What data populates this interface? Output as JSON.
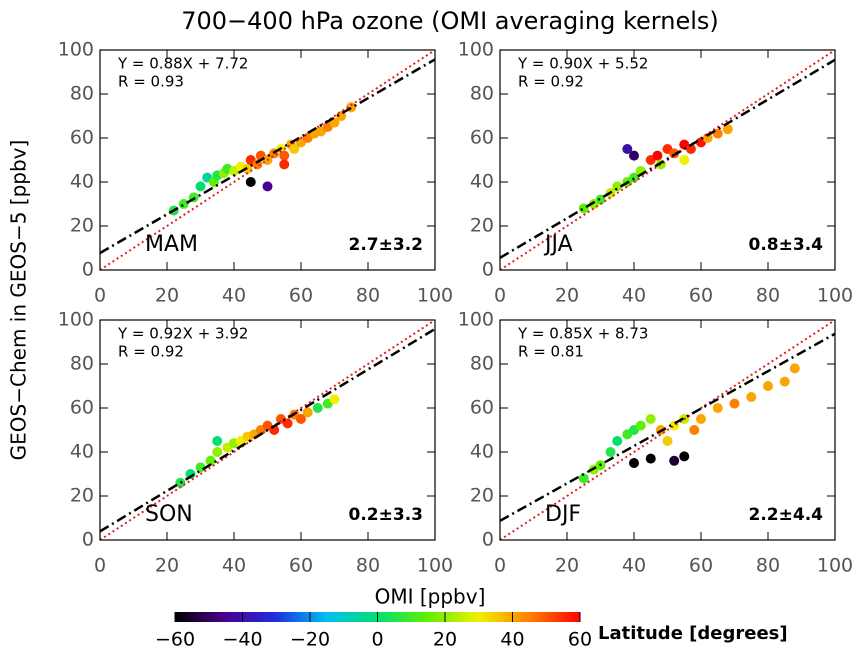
{
  "title": "700−400 hPa ozone (OMI averaging kernels)",
  "xlabel": "OMI [ppbv]",
  "ylabel": "GEOS−Chem in GEOS−5 [ppbv]",
  "colorbar": {
    "label": "Latitude [degrees]",
    "lim": [
      -60,
      60
    ],
    "ticks": [
      {
        "value": -60,
        "label": "−60"
      },
      {
        "value": -40,
        "label": "−40"
      },
      {
        "value": -20,
        "label": "−20"
      },
      0,
      20,
      40,
      60
    ],
    "colors": [
      "#000000",
      "#4b0090",
      "#2030e0",
      "#00c0f0",
      "#00e070",
      "#60f000",
      "#f0f000",
      "#ff8000",
      "#ff0000"
    ]
  },
  "chart_data": [
    {
      "type": "scatter",
      "season": "MAM",
      "equation": "Y = 0.88X + 7.72",
      "r": "R = 0.93",
      "bias": "2.7±3.2",
      "fit": {
        "slope": 0.88,
        "intercept": 7.72,
        "color": "#000000"
      },
      "one_to_one_color": "#e02020",
      "xlim": [
        0,
        100
      ],
      "ylim": [
        0,
        100
      ],
      "xticks": [
        0,
        20,
        40,
        60,
        80,
        100
      ],
      "yticks": [
        0,
        20,
        40,
        60,
        80,
        100
      ],
      "x": [
        22,
        25,
        28,
        30,
        32,
        34,
        35,
        37,
        38,
        40,
        42,
        44,
        45,
        47,
        48,
        50,
        52,
        54,
        55,
        57,
        58,
        60,
        62,
        64,
        66,
        68,
        70,
        72,
        75,
        45,
        50,
        55
      ],
      "y": [
        27,
        30,
        33,
        38,
        42,
        40,
        43,
        44,
        46,
        45,
        47,
        46,
        50,
        48,
        52,
        50,
        53,
        55,
        52,
        57,
        55,
        58,
        60,
        62,
        63,
        65,
        67,
        70,
        74,
        40,
        38,
        48
      ],
      "lat": [
        5,
        10,
        10,
        0,
        -5,
        15,
        5,
        20,
        10,
        25,
        30,
        35,
        55,
        45,
        50,
        40,
        45,
        30,
        50,
        40,
        35,
        40,
        45,
        40,
        40,
        45,
        40,
        40,
        40,
        -60,
        -45,
        55
      ]
    },
    {
      "type": "scatter",
      "season": "JJA",
      "equation": "Y = 0.90X + 5.52",
      "r": "R = 0.92",
      "bias": "0.8±3.4",
      "fit": {
        "slope": 0.9,
        "intercept": 5.52,
        "color": "#000000"
      },
      "one_to_one_color": "#e02020",
      "xlim": [
        0,
        100
      ],
      "ylim": [
        0,
        100
      ],
      "xticks": [
        0,
        20,
        40,
        60,
        80,
        100
      ],
      "yticks": [
        0,
        20,
        40,
        60,
        80,
        100
      ],
      "x": [
        25,
        28,
        30,
        33,
        35,
        38,
        40,
        42,
        45,
        47,
        50,
        52,
        55,
        57,
        60,
        62,
        65,
        68,
        40,
        38,
        48,
        55
      ],
      "y": [
        28,
        30,
        32,
        35,
        38,
        40,
        42,
        45,
        50,
        52,
        55,
        53,
        57,
        55,
        58,
        60,
        62,
        64,
        52,
        55,
        48,
        50
      ],
      "lat": [
        15,
        20,
        10,
        25,
        20,
        15,
        10,
        20,
        55,
        60,
        55,
        50,
        60,
        55,
        58,
        40,
        45,
        40,
        -50,
        -40,
        20,
        30
      ]
    },
    {
      "type": "scatter",
      "season": "SON",
      "equation": "Y = 0.92X + 3.92",
      "r": "R = 0.92",
      "bias": "0.2±3.3",
      "fit": {
        "slope": 0.92,
        "intercept": 3.92,
        "color": "#000000"
      },
      "one_to_one_color": "#e02020",
      "xlim": [
        0,
        100
      ],
      "ylim": [
        0,
        100
      ],
      "xticks": [
        0,
        20,
        40,
        60,
        80,
        100
      ],
      "yticks": [
        0,
        20,
        40,
        60,
        80,
        100
      ],
      "x": [
        24,
        27,
        30,
        33,
        35,
        38,
        40,
        42,
        44,
        46,
        48,
        50,
        52,
        54,
        56,
        58,
        60,
        62,
        65,
        68,
        70,
        35
      ],
      "y": [
        26,
        30,
        33,
        36,
        40,
        42,
        44,
        45,
        47,
        48,
        50,
        52,
        50,
        55,
        53,
        57,
        55,
        58,
        60,
        62,
        64,
        45
      ],
      "lat": [
        5,
        0,
        10,
        15,
        20,
        25,
        20,
        30,
        35,
        40,
        45,
        50,
        55,
        50,
        55,
        45,
        50,
        40,
        5,
        10,
        30,
        0
      ]
    },
    {
      "type": "scatter",
      "season": "DJF",
      "equation": "Y = 0.85X + 8.73",
      "r": "R = 0.81",
      "bias": "2.2±4.4",
      "fit": {
        "slope": 0.85,
        "intercept": 8.73,
        "color": "#000000"
      },
      "one_to_one_color": "#e02020",
      "xlim": [
        0,
        100
      ],
      "ylim": [
        0,
        100
      ],
      "xticks": [
        0,
        20,
        40,
        60,
        80,
        100
      ],
      "yticks": [
        0,
        20,
        40,
        60,
        80,
        100
      ],
      "x": [
        25,
        28,
        30,
        33,
        35,
        38,
        40,
        42,
        45,
        48,
        50,
        52,
        55,
        58,
        60,
        65,
        70,
        75,
        80,
        85,
        88,
        40,
        45,
        52,
        55
      ],
      "y": [
        28,
        32,
        34,
        40,
        45,
        48,
        50,
        52,
        55,
        50,
        45,
        52,
        55,
        50,
        55,
        60,
        62,
        65,
        70,
        72,
        78,
        35,
        37,
        36,
        38
      ],
      "lat": [
        10,
        20,
        15,
        5,
        0,
        10,
        5,
        15,
        20,
        40,
        35,
        30,
        25,
        45,
        40,
        40,
        45,
        40,
        40,
        40,
        40,
        -60,
        -60,
        -55,
        -60
      ]
    }
  ]
}
